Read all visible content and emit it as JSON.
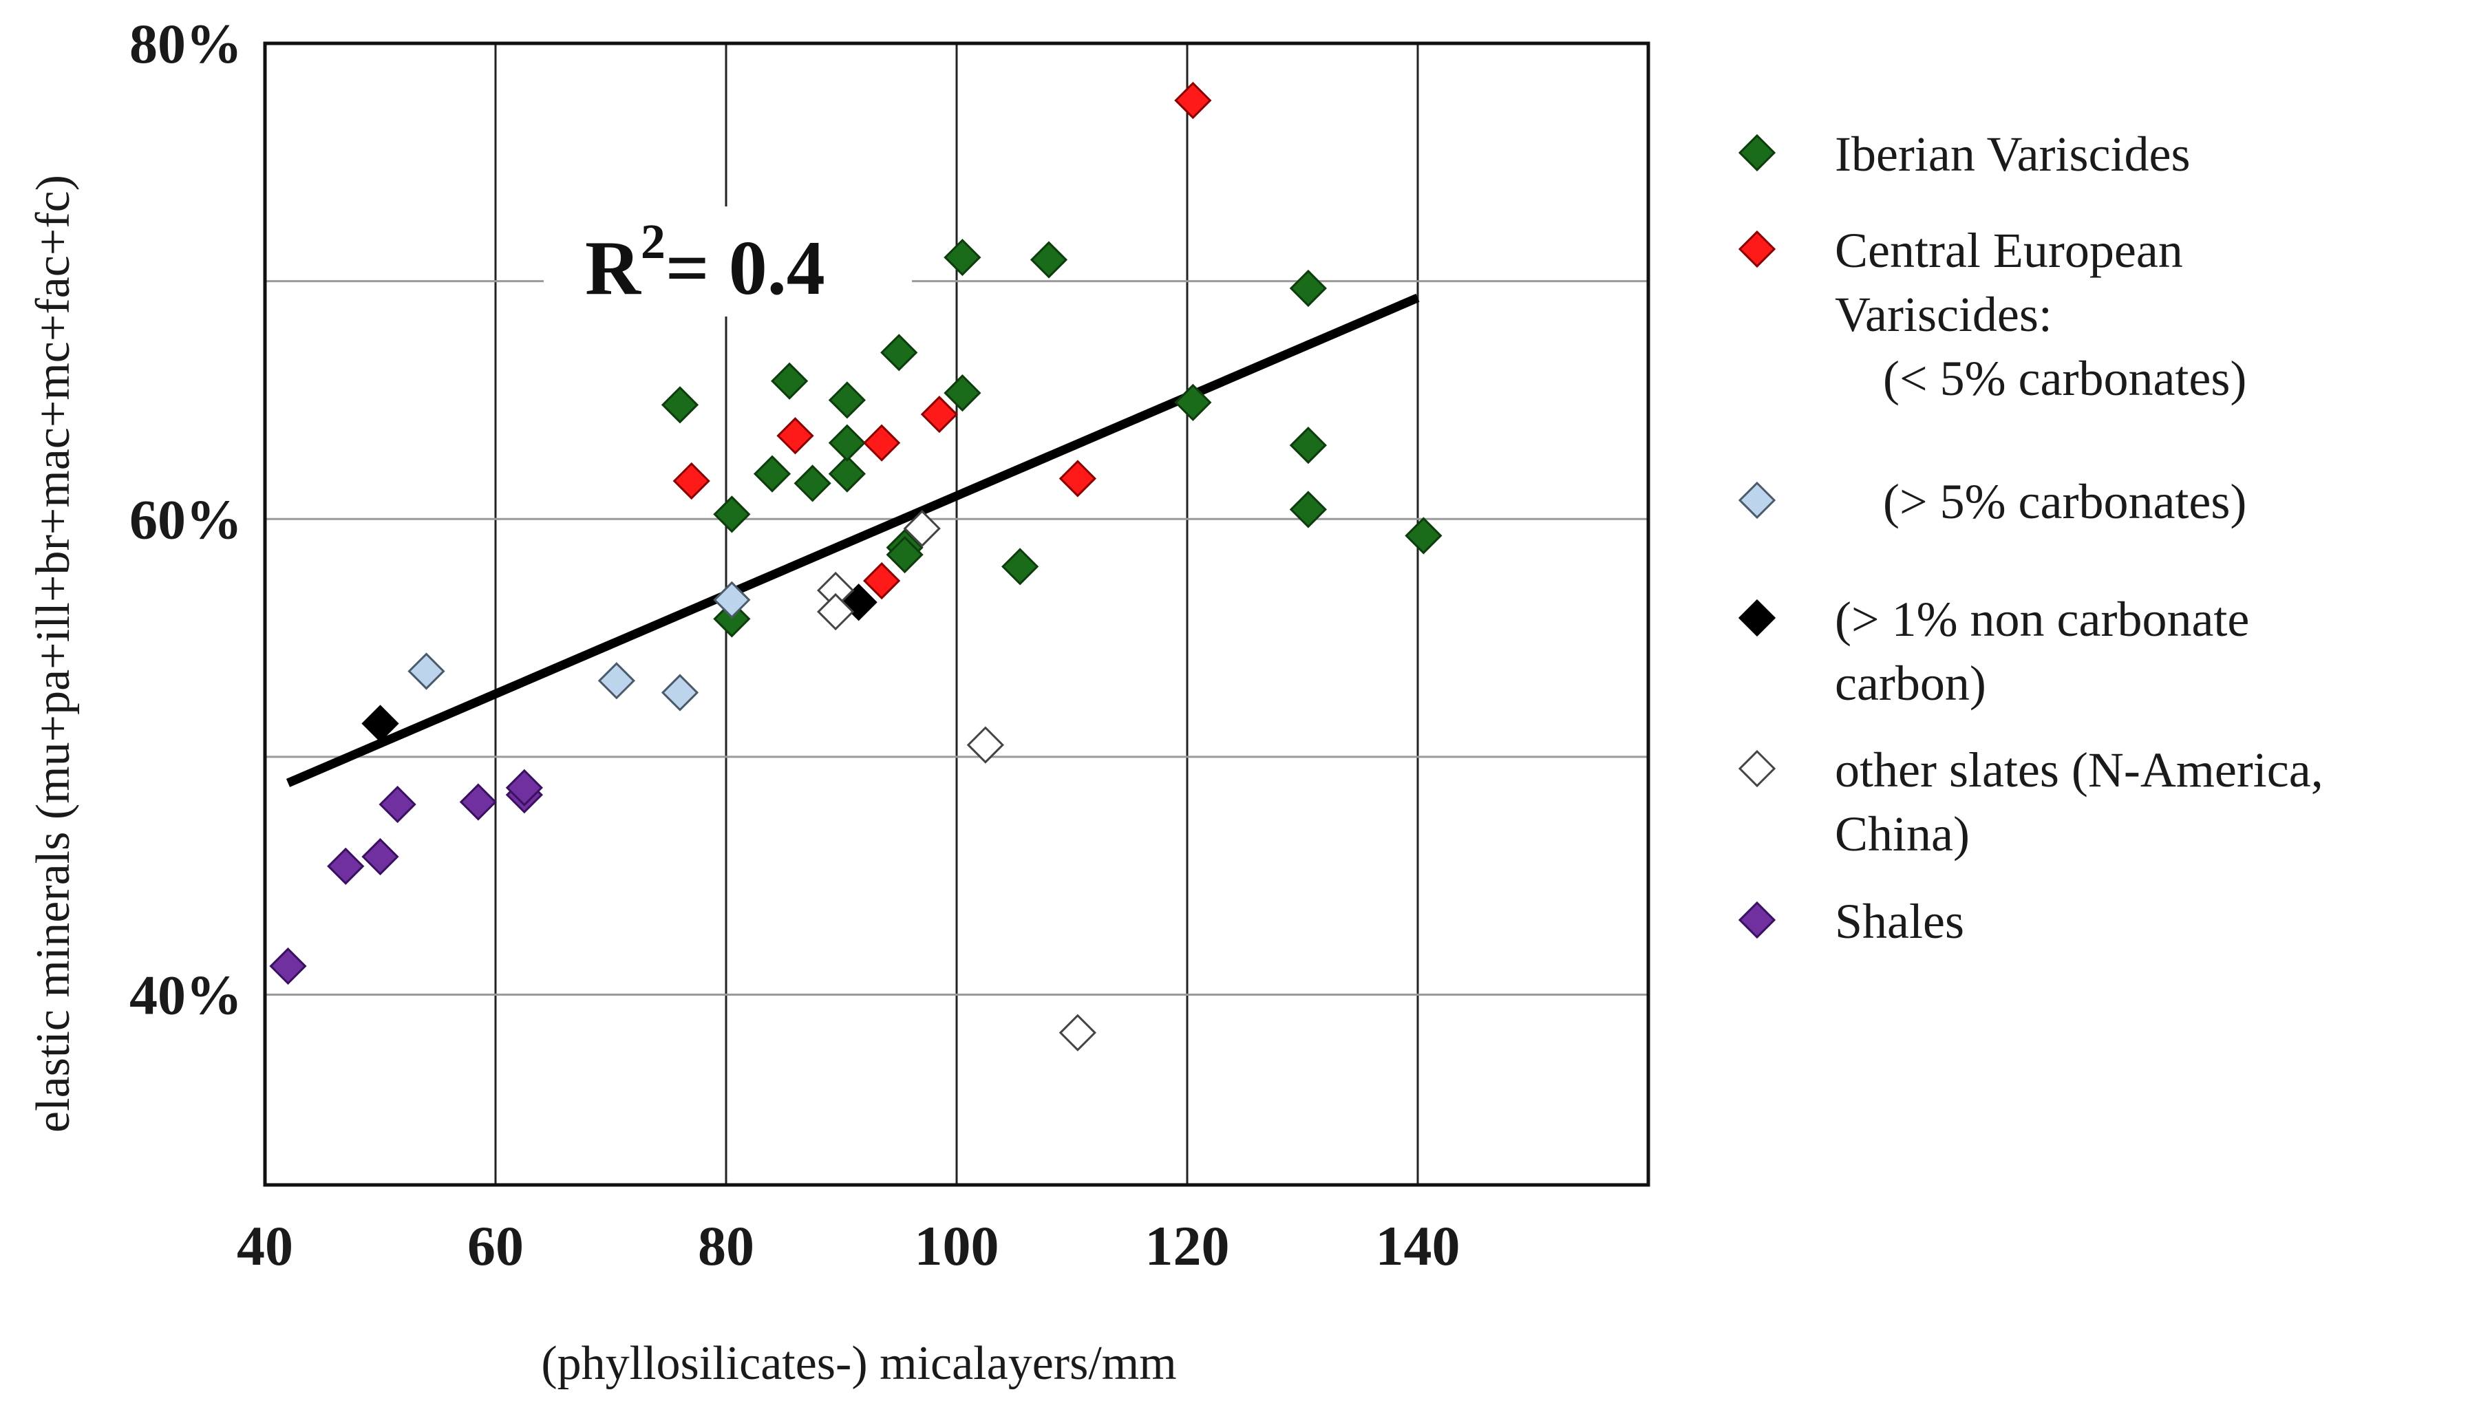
{
  "chart_data": {
    "type": "scatter",
    "xlabel": "(phyllosilicates-) micalayers/mm",
    "ylabel": "elastic minerals (mu+pa+ill+br+mac+mc+fac+fc)",
    "xlim": [
      40,
      160
    ],
    "ylim": [
      0.32,
      0.8
    ],
    "x_ticks": [
      40,
      60,
      80,
      100,
      120,
      140
    ],
    "x_tick_labels": [
      "40",
      "60",
      "80",
      "100",
      "120",
      "140"
    ],
    "y_ticks": [
      0.4,
      0.6,
      0.8
    ],
    "y_tick_labels": [
      "40%",
      "60%",
      "80%"
    ],
    "grid_x": [
      60,
      80,
      100,
      120,
      140
    ],
    "grid_y": [
      0.4,
      0.5,
      0.6,
      0.7
    ],
    "grid": true,
    "legend_position": "right",
    "annotation": {
      "base": "R",
      "sup": "2",
      "rest": "= 0.4"
    },
    "trendline": {
      "x": [
        42,
        140
      ],
      "y": [
        0.489,
        0.693
      ],
      "color": "#000000"
    },
    "series": [
      {
        "name": "Iberian Variscides",
        "legend_lines": [
          "Iberian Variscides"
        ],
        "fill": "#1a6b1a",
        "stroke": "#0d3d0d",
        "points": [
          [
            76,
            0.648
          ],
          [
            80.5,
            0.602
          ],
          [
            80.5,
            0.558
          ],
          [
            84,
            0.619
          ],
          [
            85.5,
            0.658
          ],
          [
            87.5,
            0.615
          ],
          [
            90.5,
            0.65
          ],
          [
            90.5,
            0.619
          ],
          [
            90.5,
            0.632
          ],
          [
            95,
            0.67
          ],
          [
            95.5,
            0.588
          ],
          [
            95.5,
            0.585
          ],
          [
            100.5,
            0.71
          ],
          [
            100.5,
            0.653
          ],
          [
            105.5,
            0.58
          ],
          [
            108,
            0.709
          ],
          [
            120.5,
            0.649
          ],
          [
            130.5,
            0.697
          ],
          [
            130.5,
            0.631
          ],
          [
            130.5,
            0.604
          ],
          [
            140.5,
            0.593
          ]
        ]
      },
      {
        "name": "Central European Variscides: (< 5% carbonates)",
        "legend_lines": [
          "Central European",
          "Variscides:",
          "(< 5% carbonates)"
        ],
        "fill": "#ff1a1a",
        "stroke": "#8b0000",
        "points": [
          [
            77,
            0.616
          ],
          [
            86,
            0.635
          ],
          [
            93.5,
            0.632
          ],
          [
            93.5,
            0.574
          ],
          [
            98.5,
            0.644
          ],
          [
            110.5,
            0.617
          ],
          [
            120.5,
            0.776
          ]
        ]
      },
      {
        "name": "(> 5% carbonates)",
        "legend_lines": [
          "(> 5% carbonates)"
        ],
        "fill": "#bcd4ec",
        "stroke": "#4a5a6a",
        "points": [
          [
            54,
            0.536
          ],
          [
            70.5,
            0.532
          ],
          [
            76,
            0.527
          ],
          [
            80.5,
            0.566
          ]
        ]
      },
      {
        "name": "(> 1% non carbonate carbon)",
        "legend_lines": [
          "(> 1% non carbonate",
          "carbon)"
        ],
        "fill": "#000000",
        "stroke": "#000000",
        "points": [
          [
            50,
            0.514
          ],
          [
            91.5,
            0.565
          ]
        ]
      },
      {
        "name": "other slates (N-America, China)",
        "legend_lines": [
          "other slates (N-America,",
          "China)"
        ],
        "fill": "#ffffff",
        "stroke": "#444444",
        "points": [
          [
            89.5,
            0.57
          ],
          [
            89.5,
            0.561
          ],
          [
            97,
            0.596
          ],
          [
            102.5,
            0.505
          ],
          [
            110.5,
            0.384
          ]
        ]
      },
      {
        "name": "Shales",
        "legend_lines": [
          "Shales"
        ],
        "fill": "#7030a0",
        "stroke": "#3a1060",
        "points": [
          [
            42,
            0.412
          ],
          [
            47,
            0.454
          ],
          [
            50,
            0.458
          ],
          [
            51.5,
            0.48
          ],
          [
            58.5,
            0.481
          ],
          [
            62.5,
            0.484
          ],
          [
            62.5,
            0.487
          ]
        ]
      }
    ]
  }
}
